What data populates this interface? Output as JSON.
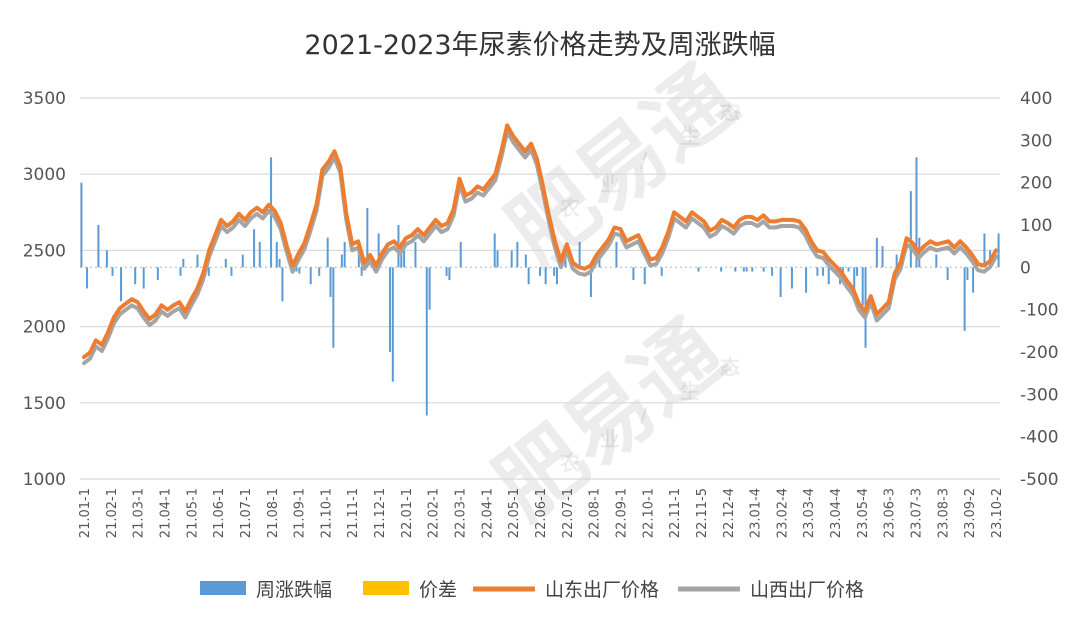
{
  "chart_data": {
    "type": "line",
    "title": "2021-2023年尿素价格走势及周涨跌幅",
    "left_axis": {
      "min": 1000,
      "max": 3500,
      "ticks": [
        1000,
        1500,
        2000,
        2500,
        3000,
        3500
      ]
    },
    "right_axis": {
      "min": -500,
      "max": 400,
      "ticks": [
        -500,
        -400,
        -300,
        -200,
        -100,
        0,
        100,
        200,
        300,
        400
      ]
    },
    "x_labels": [
      "21.01-1",
      "21.02-1",
      "21.03-1",
      "21.04-1",
      "21.05-1",
      "21.06-1",
      "21.07-1",
      "21.08-1",
      "21.09-1",
      "21.10-1",
      "21.11-1",
      "21.12-1",
      "22.01-1",
      "22.02-1",
      "22.03-1",
      "22.04-1",
      "22.05-1",
      "22.06-1",
      "22.07-1",
      "22.08-1",
      "22.09-1",
      "22.10-1",
      "22.11-1",
      "22.11-5",
      "22.12-4",
      "23.01-4",
      "23.02-4",
      "23.03-4",
      "23.04-4",
      "23.05-4",
      "23.06-3",
      "23.07-3",
      "23.08-3",
      "23.09-2",
      "23.10-2"
    ],
    "grid": true,
    "legend_position": "bottom",
    "series": [
      {
        "name": "周涨跌幅",
        "kind": "bar",
        "axis": "right",
        "color": "#5b9bd5",
        "values": [
          200,
          0,
          -50,
          0,
          0,
          0,
          100,
          0,
          0,
          40,
          0,
          -20,
          0,
          0,
          -80,
          0,
          0,
          0,
          0,
          -40,
          0,
          0,
          -50,
          0,
          0,
          0,
          0,
          -30,
          0,
          0,
          0,
          0,
          0,
          0,
          0,
          -20,
          20,
          0,
          0,
          0,
          0,
          30,
          0,
          0,
          0,
          -20,
          0,
          0,
          0,
          0,
          0,
          20,
          0,
          -20,
          0,
          0,
          0,
          30,
          0,
          0,
          0,
          90,
          0,
          60,
          0,
          0,
          0,
          260,
          0,
          60,
          20,
          -80,
          0,
          0,
          30,
          0,
          -10,
          -15,
          0,
          0,
          0,
          -40,
          0,
          0,
          -20,
          0,
          0,
          70,
          -70,
          -190,
          0,
          0,
          30,
          60,
          0,
          0,
          0,
          0,
          60,
          -20,
          0,
          140,
          0,
          0,
          0,
          80,
          0,
          0,
          0,
          -200,
          -270,
          0,
          100,
          60,
          40,
          0,
          0,
          0,
          60,
          0,
          0,
          0,
          -350,
          -100,
          0,
          0,
          0,
          0,
          0,
          -20,
          -30,
          0,
          0,
          0,
          60,
          0,
          0,
          0,
          0,
          0,
          0,
          0,
          0,
          0,
          0,
          0,
          80,
          40,
          0,
          0,
          0,
          0,
          40,
          0,
          60,
          0,
          0,
          30,
          -40,
          0,
          0,
          0,
          -20,
          0,
          -40,
          0,
          0,
          -20,
          -40,
          0,
          0,
          30,
          0,
          30,
          0,
          0,
          60,
          0,
          0,
          0,
          -70,
          0,
          0,
          20,
          0,
          0,
          0,
          0,
          0,
          60,
          0,
          0,
          0,
          0,
          0,
          -30,
          0,
          0,
          0,
          -40,
          0,
          0,
          0,
          0,
          0,
          -20,
          0,
          0,
          0,
          0,
          0,
          0,
          0,
          0,
          0,
          0,
          0,
          0,
          -10,
          0,
          0,
          0,
          0,
          0,
          0,
          0,
          -10,
          0,
          0,
          0,
          0,
          -10,
          0,
          0,
          -10,
          -10,
          0,
          -10,
          0,
          0,
          0,
          -10,
          0,
          0,
          -20,
          0,
          0,
          -70,
          0,
          0,
          0,
          -50,
          0,
          0,
          0,
          0,
          -60,
          0,
          0,
          0,
          -20,
          0,
          -20,
          0,
          -40,
          0,
          0,
          -20,
          -40,
          -30,
          0,
          -10,
          0,
          -60,
          -20,
          0,
          -90,
          -190,
          0,
          0,
          0,
          70,
          0,
          50,
          0,
          0,
          0,
          0,
          30,
          0,
          0,
          0,
          0,
          180,
          0,
          260,
          70,
          0,
          0,
          0,
          0,
          0,
          30,
          0,
          0,
          0,
          -30,
          0,
          0,
          0,
          0,
          0,
          -150,
          -30,
          0,
          -60,
          0,
          0,
          0,
          80,
          0,
          40,
          0,
          0,
          80
        ]
      },
      {
        "name": "价差",
        "kind": "bar",
        "axis": "right",
        "color": "#ffc000",
        "values": []
      },
      {
        "name": "山东出厂价格",
        "kind": "line",
        "axis": "left",
        "color": "#ed7d31",
        "values": [
          1800,
          1830,
          1910,
          1880,
          1960,
          2060,
          2120,
          2150,
          2180,
          2160,
          2100,
          2050,
          2080,
          2140,
          2110,
          2140,
          2160,
          2100,
          2180,
          2250,
          2350,
          2500,
          2600,
          2700,
          2660,
          2690,
          2740,
          2700,
          2750,
          2780,
          2750,
          2800,
          2760,
          2680,
          2530,
          2400,
          2480,
          2550,
          2670,
          2800,
          3030,
          3080,
          3150,
          3050,
          2740,
          2540,
          2560,
          2420,
          2470,
          2400,
          2480,
          2540,
          2560,
          2520,
          2580,
          2600,
          2640,
          2600,
          2650,
          2700,
          2660,
          2680,
          2770,
          2970,
          2860,
          2880,
          2920,
          2900,
          2950,
          3000,
          3150,
          3320,
          3250,
          3200,
          3150,
          3200,
          3100,
          2920,
          2730,
          2560,
          2430,
          2540,
          2420,
          2390,
          2380,
          2400,
          2470,
          2520,
          2570,
          2650,
          2640,
          2560,
          2580,
          2600,
          2520,
          2440,
          2450,
          2520,
          2620,
          2750,
          2720,
          2690,
          2750,
          2720,
          2690,
          2630,
          2650,
          2700,
          2680,
          2650,
          2700,
          2720,
          2720,
          2700,
          2730,
          2690,
          2690,
          2700,
          2700,
          2700,
          2690,
          2640,
          2560,
          2500,
          2490,
          2440,
          2400,
          2360,
          2300,
          2250,
          2150,
          2100,
          2200,
          2080,
          2120,
          2160,
          2350,
          2420,
          2580,
          2550,
          2490,
          2530,
          2560,
          2540,
          2550,
          2560,
          2520,
          2560,
          2520,
          2470,
          2410,
          2400,
          2430,
          2500
        ]
      },
      {
        "name": "山西出厂价格",
        "kind": "line",
        "axis": "left",
        "color": "#a5a5a5",
        "values": [
          1760,
          1790,
          1870,
          1840,
          1920,
          2020,
          2080,
          2110,
          2140,
          2120,
          2060,
          2010,
          2040,
          2100,
          2070,
          2100,
          2120,
          2060,
          2140,
          2210,
          2310,
          2460,
          2560,
          2660,
          2620,
          2650,
          2700,
          2660,
          2710,
          2740,
          2710,
          2760,
          2720,
          2640,
          2490,
          2360,
          2440,
          2510,
          2630,
          2760,
          2990,
          3040,
          3110,
          3010,
          2700,
          2500,
          2520,
          2380,
          2430,
          2360,
          2440,
          2500,
          2520,
          2480,
          2540,
          2560,
          2600,
          2560,
          2610,
          2660,
          2620,
          2640,
          2730,
          2930,
          2820,
          2840,
          2880,
          2860,
          2910,
          2960,
          3110,
          3280,
          3210,
          3160,
          3110,
          3160,
          3060,
          2880,
          2690,
          2520,
          2390,
          2500,
          2380,
          2350,
          2340,
          2360,
          2430,
          2480,
          2530,
          2610,
          2600,
          2520,
          2540,
          2560,
          2480,
          2400,
          2410,
          2480,
          2580,
          2710,
          2680,
          2650,
          2710,
          2680,
          2650,
          2590,
          2610,
          2660,
          2640,
          2610,
          2660,
          2680,
          2680,
          2660,
          2690,
          2650,
          2650,
          2660,
          2660,
          2660,
          2650,
          2600,
          2520,
          2460,
          2450,
          2400,
          2360,
          2320,
          2260,
          2210,
          2110,
          2060,
          2160,
          2040,
          2080,
          2120,
          2310,
          2380,
          2540,
          2510,
          2450,
          2490,
          2520,
          2500,
          2510,
          2520,
          2480,
          2520,
          2480,
          2430,
          2370,
          2360,
          2390,
          2460
        ]
      }
    ]
  },
  "watermarks": {
    "brand": "肥易通",
    "sub_chars": [
      "农",
      "业",
      "/",
      "生",
      "态"
    ]
  },
  "colors": {
    "grid": "#d9d9d9",
    "zero_line": "#bfbfbf",
    "text": "#555555"
  }
}
